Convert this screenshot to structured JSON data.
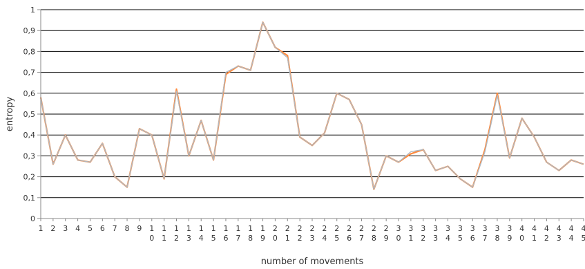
{
  "chart_data": {
    "type": "line",
    "title": "",
    "xlabel": "number of movements",
    "ylabel": "entropy",
    "ylim": [
      0,
      1
    ],
    "yticks": [
      0,
      0.1,
      0.2,
      0.3,
      0.4,
      0.5,
      0.6,
      0.7,
      0.8,
      0.9,
      1
    ],
    "ytick_labels": [
      "0",
      "0,1",
      "0,2",
      "0,3",
      "0,4",
      "0,5",
      "0,6",
      "0,7",
      "0,8",
      "0,9",
      "1"
    ],
    "grid": "horizontal",
    "x": [
      1,
      2,
      3,
      4,
      5,
      6,
      7,
      8,
      9,
      10,
      11,
      12,
      13,
      14,
      15,
      16,
      17,
      18,
      19,
      20,
      21,
      22,
      23,
      24,
      25,
      26,
      27,
      28,
      29,
      30,
      31,
      32,
      33,
      34,
      35,
      36,
      37,
      38,
      39,
      40,
      41,
      42,
      43,
      44,
      45
    ],
    "xtick_labels": [
      "1",
      "2",
      "3",
      "4",
      "5",
      "6",
      "7",
      "8",
      "9",
      "10",
      "11",
      "12",
      "13",
      "14",
      "15",
      "16",
      "17",
      "18",
      "19",
      "20",
      "21",
      "22",
      "23",
      "24",
      "25",
      "26",
      "27",
      "28",
      "29",
      "30",
      "31",
      "32",
      "33",
      "34",
      "35",
      "36",
      "37",
      "38",
      "39",
      "40",
      "41",
      "42",
      "43",
      "44",
      "45"
    ],
    "series": [
      {
        "name": "",
        "color": "#ff8a3d",
        "values": [
          0.58,
          0.26,
          0.4,
          0.28,
          0.27,
          0.36,
          0.2,
          0.15,
          0.43,
          0.4,
          0.19,
          0.62,
          0.3,
          0.47,
          0.28,
          0.69,
          0.73,
          0.71,
          0.94,
          0.82,
          0.78,
          0.39,
          0.35,
          0.41,
          0.6,
          0.57,
          0.45,
          0.14,
          0.3,
          0.27,
          0.31,
          0.33,
          0.23,
          0.25,
          0.19,
          0.15,
          0.33,
          0.6,
          0.29,
          0.48,
          0.39,
          0.27,
          0.23,
          0.28,
          0.26
        ]
      },
      {
        "name": "",
        "color": "#b0b8c0",
        "values": [
          0.58,
          0.26,
          0.4,
          0.28,
          0.27,
          0.36,
          0.2,
          0.15,
          0.43,
          0.4,
          0.19,
          0.61,
          0.3,
          0.47,
          0.28,
          0.7,
          0.73,
          0.71,
          0.94,
          0.82,
          0.77,
          0.39,
          0.35,
          0.41,
          0.6,
          0.57,
          0.45,
          0.14,
          0.3,
          0.27,
          0.32,
          0.33,
          0.23,
          0.25,
          0.19,
          0.15,
          0.32,
          0.59,
          0.29,
          0.48,
          0.39,
          0.27,
          0.23,
          0.28,
          0.26
        ]
      }
    ]
  }
}
